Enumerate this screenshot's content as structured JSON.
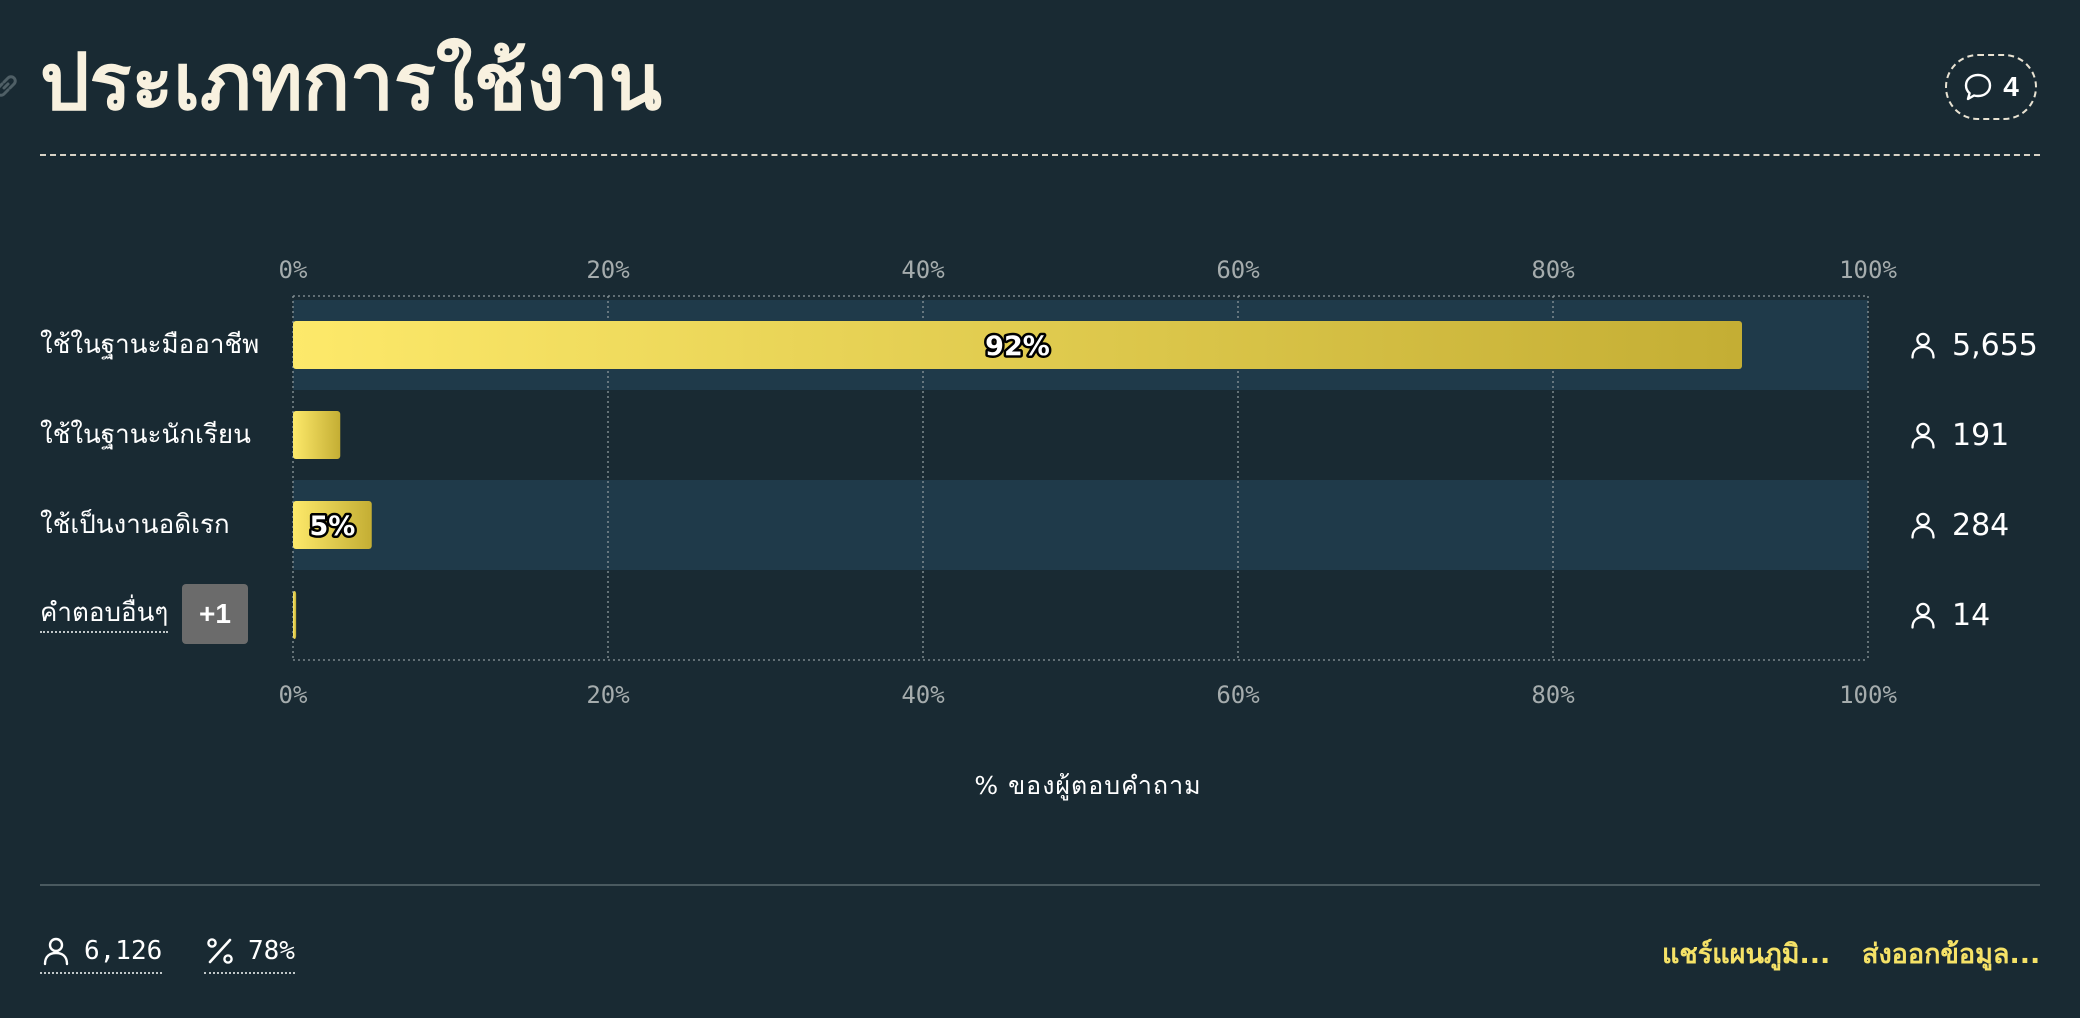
{
  "title": "ประเภทการใช้งาน",
  "comments": {
    "count": "4"
  },
  "colors": {
    "background": "#192a33",
    "row_highlight": "#1f3a4a",
    "bar_start": "#fde96a",
    "bar_end": "#c4ae34",
    "accent": "#f5e267"
  },
  "chart_data": {
    "type": "bar",
    "orientation": "horizontal",
    "categories": [
      "ใช้ในฐานะมืออาชีพ",
      "ใช้ในฐานะนักเรียน",
      "ใช้เป็นงานอดิเรก",
      "คำตอบอื่นๆ"
    ],
    "values": [
      92,
      3,
      5,
      0.2
    ],
    "data_labels": [
      "92%",
      "",
      "5%",
      ""
    ],
    "respondent_counts": [
      "5,655",
      "191",
      "284",
      "14"
    ],
    "xlim": [
      0,
      100
    ],
    "x_ticks": [
      "0%",
      "20%",
      "40%",
      "60%",
      "80%",
      "100%"
    ],
    "xlabel": "% ของผู้ตอบคำถาม",
    "highlighted_rows": [
      0,
      2
    ],
    "grid": true
  },
  "other_answers_badge": "+1",
  "footer": {
    "total_respondents": "6,126",
    "response_rate": "78%",
    "share_chart": "แชร์แผนภูมิ...",
    "export_data": "ส่งออกข้อมูล..."
  }
}
